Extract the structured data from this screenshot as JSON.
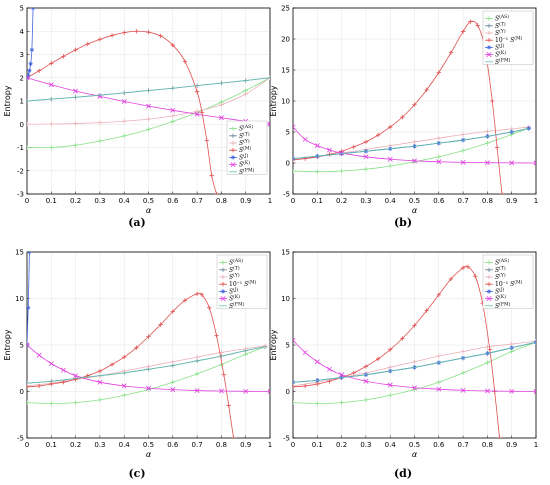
{
  "chart_data": [
    {
      "type": "line",
      "caption": "(a)",
      "xlabel": "α",
      "ylabel": "Entropy",
      "xlim": [
        0,
        1
      ],
      "ylim": [
        -3,
        5
      ],
      "xticks": [
        "0",
        "0.1",
        "0.2",
        "0.3",
        "0.4",
        "0.5",
        "0.6",
        "0.7",
        "0.8",
        "0.9",
        "1"
      ],
      "yticks": [
        "-3",
        "-2",
        "-1",
        "0",
        "1",
        "2",
        "3",
        "4",
        "5"
      ],
      "grid": true,
      "legend_position": "center-right",
      "series": [
        {
          "name": "S(AS)",
          "color": "#88e088",
          "marker": "+",
          "x": [
            0,
            0.1,
            0.2,
            0.3,
            0.4,
            0.5,
            0.6,
            0.7,
            0.8,
            0.9,
            1.0
          ],
          "y": [
            -1.0,
            -1.0,
            -0.9,
            -0.72,
            -0.5,
            -0.22,
            0.12,
            0.5,
            0.95,
            1.45,
            2.0
          ]
        },
        {
          "name": "S(T)",
          "color": "#6a8a9a",
          "marker": "+",
          "x": [
            0,
            0.1,
            0.2,
            0.3,
            0.4,
            0.5,
            0.6,
            0.7,
            0.8,
            0.9,
            1.0
          ],
          "y": [
            1.0,
            1.08,
            1.16,
            1.25,
            1.35,
            1.45,
            1.55,
            1.66,
            1.77,
            1.88,
            2.0
          ]
        },
        {
          "name": "S(Y)",
          "color": "#e8b0b8",
          "marker": "+",
          "x": [
            0,
            0.1,
            0.2,
            0.3,
            0.4,
            0.5,
            0.6,
            0.7,
            0.8,
            0.9,
            1.0
          ],
          "y": [
            0.0,
            0.01,
            0.03,
            0.07,
            0.13,
            0.22,
            0.36,
            0.56,
            0.84,
            1.3,
            2.0
          ]
        },
        {
          "name": "S(M)",
          "color": "#e05050",
          "marker": "+",
          "x": [
            0,
            0.05,
            0.1,
            0.15,
            0.2,
            0.25,
            0.3,
            0.35,
            0.4,
            0.45,
            0.5,
            0.55,
            0.6,
            0.65,
            0.7,
            0.72,
            0.74,
            0.76,
            0.78
          ],
          "y": [
            2.0,
            2.3,
            2.62,
            2.92,
            3.2,
            3.45,
            3.65,
            3.82,
            3.94,
            4.0,
            3.96,
            3.8,
            3.4,
            2.7,
            1.4,
            0.5,
            -0.7,
            -2.2,
            -3.0
          ]
        },
        {
          "name": "S(J)",
          "color": "#4466dd",
          "marker": "*",
          "x": [
            0,
            0.005,
            0.01,
            0.015,
            0.02,
            0.025
          ],
          "y": [
            2.0,
            2.1,
            2.3,
            2.6,
            3.2,
            5.0
          ]
        },
        {
          "name": "S(K)",
          "color": "#e040e0",
          "marker": "x",
          "x": [
            0,
            0.1,
            0.2,
            0.3,
            0.4,
            0.5,
            0.6,
            0.7,
            0.8,
            0.9,
            1.0
          ],
          "y": [
            2.0,
            1.7,
            1.43,
            1.2,
            0.98,
            0.78,
            0.6,
            0.43,
            0.28,
            0.13,
            0.0
          ]
        },
        {
          "name": "S(FM)",
          "color": "#60c0b0",
          "marker": "",
          "x": [
            0,
            0.1,
            0.2,
            0.3,
            0.4,
            0.5,
            0.6,
            0.7,
            0.8,
            0.9,
            1.0
          ],
          "y": [
            1.0,
            1.08,
            1.16,
            1.25,
            1.35,
            1.45,
            1.55,
            1.66,
            1.77,
            1.88,
            2.0
          ]
        }
      ]
    },
    {
      "type": "line",
      "caption": "(b)",
      "xlabel": "α",
      "ylabel": "Entropy",
      "xlim": [
        0,
        1
      ],
      "ylim": [
        -5,
        25
      ],
      "xticks": [
        "0",
        "0.1",
        "0.2",
        "0.3",
        "0.4",
        "0.5",
        "0.6",
        "0.7",
        "0.8",
        "0.9",
        "1"
      ],
      "yticks": [
        "-5",
        "0",
        "5",
        "10",
        "15",
        "20",
        "25"
      ],
      "grid": true,
      "legend_position": "top-right",
      "series": [
        {
          "name": "S(AS)",
          "color": "#88e088",
          "marker": "+",
          "x": [
            0,
            0.1,
            0.2,
            0.3,
            0.4,
            0.5,
            0.6,
            0.7,
            0.8,
            0.9,
            0.97
          ],
          "y": [
            -1.3,
            -1.4,
            -1.3,
            -1.0,
            -0.5,
            0.2,
            1.0,
            2.0,
            3.2,
            4.6,
            5.6
          ]
        },
        {
          "name": "S(T)",
          "color": "#6a8a9a",
          "marker": "+",
          "x": [
            0,
            0.1,
            0.2,
            0.3,
            0.4,
            0.5,
            0.6,
            0.7,
            0.8,
            0.9,
            0.97
          ],
          "y": [
            0.7,
            1.1,
            1.5,
            1.9,
            2.3,
            2.7,
            3.2,
            3.7,
            4.3,
            5.0,
            5.6
          ]
        },
        {
          "name": "S(Y)",
          "color": "#e8b0b8",
          "marker": "+",
          "x": [
            0,
            0.1,
            0.2,
            0.3,
            0.4,
            0.5,
            0.6,
            0.7,
            0.8,
            0.9,
            0.97
          ],
          "y": [
            0.5,
            1.0,
            1.6,
            2.2,
            2.8,
            3.4,
            4.0,
            4.6,
            5.1,
            5.5,
            5.8
          ]
        },
        {
          "name": "10⁻¹ S(M)",
          "color": "#e05050",
          "marker": "+",
          "x": [
            0,
            0.05,
            0.1,
            0.15,
            0.2,
            0.25,
            0.3,
            0.35,
            0.4,
            0.45,
            0.5,
            0.55,
            0.6,
            0.65,
            0.7,
            0.73,
            0.76,
            0.79,
            0.82,
            0.84,
            0.86
          ],
          "y": [
            0.5,
            0.7,
            1.0,
            1.4,
            1.9,
            2.6,
            3.4,
            4.5,
            5.8,
            7.4,
            9.4,
            11.8,
            14.6,
            17.8,
            21.2,
            22.8,
            22.2,
            18.5,
            10.0,
            2.5,
            -5.0
          ]
        },
        {
          "name": "S(J)",
          "color": "#4466dd",
          "marker": "*",
          "x": [
            0,
            0.1,
            0.2,
            0.3,
            0.4,
            0.5,
            0.6,
            0.7,
            0.8,
            0.9,
            0.97
          ],
          "y": [
            0.7,
            1.1,
            1.5,
            1.9,
            2.3,
            2.7,
            3.2,
            3.7,
            4.3,
            5.0,
            5.6
          ]
        },
        {
          "name": "S(K)",
          "color": "#e040e0",
          "marker": "x",
          "x": [
            0,
            0.05,
            0.1,
            0.15,
            0.2,
            0.3,
            0.4,
            0.5,
            0.6,
            0.7,
            0.8,
            0.9,
            1.0
          ],
          "y": [
            5.8,
            3.8,
            2.8,
            2.1,
            1.6,
            1.0,
            0.6,
            0.35,
            0.2,
            0.1,
            0.05,
            0.02,
            0.0
          ]
        },
        {
          "name": "S(FM)",
          "color": "#60c0b0",
          "marker": "",
          "x": [
            0,
            0.1,
            0.2,
            0.3,
            0.4,
            0.5,
            0.6,
            0.7,
            0.8,
            0.9,
            0.97
          ],
          "y": [
            0.7,
            1.1,
            1.5,
            1.9,
            2.3,
            2.7,
            3.2,
            3.7,
            4.3,
            5.0,
            5.6
          ]
        }
      ]
    },
    {
      "type": "line",
      "caption": "(c)",
      "xlabel": "α",
      "ylabel": "Entropy",
      "xlim": [
        0,
        1
      ],
      "ylim": [
        -5,
        15
      ],
      "xticks": [
        "0",
        "0.1",
        "0.2",
        "0.3",
        "0.4",
        "0.5",
        "0.6",
        "0.7",
        "0.8",
        "0.9",
        "1"
      ],
      "yticks": [
        "-5",
        "0",
        "5",
        "10",
        "15"
      ],
      "grid": true,
      "legend_position": "top-right",
      "series": [
        {
          "name": "S(AS)",
          "color": "#88e088",
          "marker": "+",
          "x": [
            0,
            0.1,
            0.2,
            0.3,
            0.4,
            0.5,
            0.6,
            0.7,
            0.8,
            0.9,
            0.98
          ],
          "y": [
            -1.2,
            -1.3,
            -1.2,
            -0.9,
            -0.4,
            0.2,
            1.0,
            1.9,
            2.9,
            4.0,
            4.8
          ]
        },
        {
          "name": "S(T)",
          "color": "#6a8a9a",
          "marker": "+",
          "x": [
            0,
            0.1,
            0.2,
            0.3,
            0.4,
            0.5,
            0.6,
            0.7,
            0.8,
            0.9,
            0.98
          ],
          "y": [
            0.9,
            1.1,
            1.4,
            1.7,
            2.0,
            2.4,
            2.8,
            3.3,
            3.8,
            4.4,
            4.8
          ]
        },
        {
          "name": "S(Y)",
          "color": "#e8b0b8",
          "marker": "+",
          "x": [
            0,
            0.1,
            0.2,
            0.3,
            0.4,
            0.5,
            0.6,
            0.7,
            0.8,
            0.9,
            0.98
          ],
          "y": [
            0.6,
            0.9,
            1.3,
            1.7,
            2.2,
            2.7,
            3.2,
            3.7,
            4.2,
            4.6,
            4.9
          ]
        },
        {
          "name": "10⁻¹ S(M)",
          "color": "#e05050",
          "marker": "+",
          "x": [
            0,
            0.05,
            0.1,
            0.15,
            0.2,
            0.25,
            0.3,
            0.35,
            0.4,
            0.45,
            0.5,
            0.55,
            0.6,
            0.65,
            0.7,
            0.72,
            0.75,
            0.78,
            0.81,
            0.83,
            0.85
          ],
          "y": [
            0.5,
            0.6,
            0.8,
            1.0,
            1.3,
            1.7,
            2.2,
            2.9,
            3.7,
            4.7,
            5.9,
            7.2,
            8.6,
            9.8,
            10.5,
            10.4,
            9.0,
            6.0,
            1.8,
            -1.5,
            -5.0
          ]
        },
        {
          "name": "S(J)",
          "color": "#4466dd",
          "marker": "*",
          "x": [
            0,
            0.005,
            0.01
          ],
          "y": [
            5.0,
            9.0,
            15.0
          ]
        },
        {
          "name": "S(K)",
          "color": "#e040e0",
          "marker": "x",
          "x": [
            0,
            0.05,
            0.1,
            0.15,
            0.2,
            0.3,
            0.4,
            0.5,
            0.6,
            0.7,
            0.8,
            0.9,
            1.0
          ],
          "y": [
            5.0,
            3.9,
            3.0,
            2.3,
            1.7,
            1.0,
            0.6,
            0.35,
            0.2,
            0.1,
            0.05,
            0.02,
            0.0
          ]
        },
        {
          "name": "S(FM)",
          "color": "#60c0b0",
          "marker": "",
          "x": [
            0,
            0.1,
            0.2,
            0.3,
            0.4,
            0.5,
            0.6,
            0.7,
            0.8,
            0.9,
            0.98
          ],
          "y": [
            0.9,
            1.1,
            1.4,
            1.7,
            2.0,
            2.4,
            2.8,
            3.3,
            3.8,
            4.4,
            4.8
          ]
        }
      ]
    },
    {
      "type": "line",
      "caption": "(d)",
      "xlabel": "α",
      "ylabel": "Entropy",
      "xlim": [
        0,
        1
      ],
      "ylim": [
        -5,
        15
      ],
      "xticks": [
        "0",
        "0.1",
        "0.2",
        "0.3",
        "0.4",
        "0.5",
        "0.6",
        "0.7",
        "0.8",
        "0.9",
        "1"
      ],
      "yticks": [
        "-5",
        "0",
        "5",
        "10",
        "15"
      ],
      "grid": true,
      "legend_position": "top-right",
      "series": [
        {
          "name": "S(AS)",
          "color": "#88e088",
          "marker": "+",
          "x": [
            0,
            0.1,
            0.2,
            0.3,
            0.4,
            0.5,
            0.6,
            0.7,
            0.8,
            0.9,
            1.0
          ],
          "y": [
            -1.2,
            -1.3,
            -1.2,
            -0.9,
            -0.4,
            0.2,
            1.0,
            2.0,
            3.1,
            4.3,
            5.3
          ]
        },
        {
          "name": "S(T)",
          "color": "#6a8a9a",
          "marker": "+",
          "x": [
            0,
            0.1,
            0.2,
            0.3,
            0.4,
            0.5,
            0.6,
            0.7,
            0.8,
            0.9,
            1.0
          ],
          "y": [
            1.0,
            1.2,
            1.5,
            1.8,
            2.2,
            2.6,
            3.1,
            3.6,
            4.1,
            4.7,
            5.3
          ]
        },
        {
          "name": "S(Y)",
          "color": "#e8b0b8",
          "marker": "+",
          "x": [
            0,
            0.1,
            0.2,
            0.3,
            0.4,
            0.5,
            0.6,
            0.7,
            0.8,
            0.9,
            1.0
          ],
          "y": [
            0.6,
            1.0,
            1.5,
            2.0,
            2.6,
            3.2,
            3.8,
            4.3,
            4.8,
            5.1,
            5.4
          ]
        },
        {
          "name": "10⁻¹ S(M)",
          "color": "#e05050",
          "marker": "+",
          "x": [
            0,
            0.05,
            0.1,
            0.15,
            0.2,
            0.25,
            0.3,
            0.35,
            0.4,
            0.45,
            0.5,
            0.55,
            0.6,
            0.65,
            0.7,
            0.72,
            0.75,
            0.78,
            0.81,
            0.83,
            0.85
          ],
          "y": [
            0.5,
            0.6,
            0.8,
            1.1,
            1.5,
            2.0,
            2.7,
            3.5,
            4.5,
            5.7,
            7.1,
            8.7,
            10.4,
            12.1,
            13.3,
            13.4,
            12.4,
            9.5,
            4.5,
            0.0,
            -5.0
          ]
        },
        {
          "name": "S(J)",
          "color": "#4466dd",
          "marker": "*",
          "x": [
            0,
            0.1,
            0.2,
            0.3,
            0.4,
            0.5,
            0.6,
            0.7,
            0.8,
            0.9,
            1.0
          ],
          "y": [
            1.0,
            1.2,
            1.5,
            1.8,
            2.2,
            2.6,
            3.1,
            3.6,
            4.1,
            4.7,
            5.3
          ]
        },
        {
          "name": "S(K)",
          "color": "#e040e0",
          "marker": "x",
          "x": [
            0,
            0.05,
            0.1,
            0.15,
            0.2,
            0.3,
            0.4,
            0.5,
            0.6,
            0.7,
            0.8,
            0.9,
            1.0
          ],
          "y": [
            5.5,
            4.2,
            3.2,
            2.4,
            1.8,
            1.1,
            0.7,
            0.4,
            0.25,
            0.12,
            0.06,
            0.02,
            0.0
          ]
        },
        {
          "name": "S(FM)",
          "color": "#60c0b0",
          "marker": "",
          "x": [
            0,
            0.1,
            0.2,
            0.3,
            0.4,
            0.5,
            0.6,
            0.7,
            0.8,
            0.9,
            1.0
          ],
          "y": [
            1.0,
            1.2,
            1.5,
            1.8,
            2.2,
            2.6,
            3.1,
            3.6,
            4.1,
            4.7,
            5.3
          ]
        }
      ]
    }
  ]
}
